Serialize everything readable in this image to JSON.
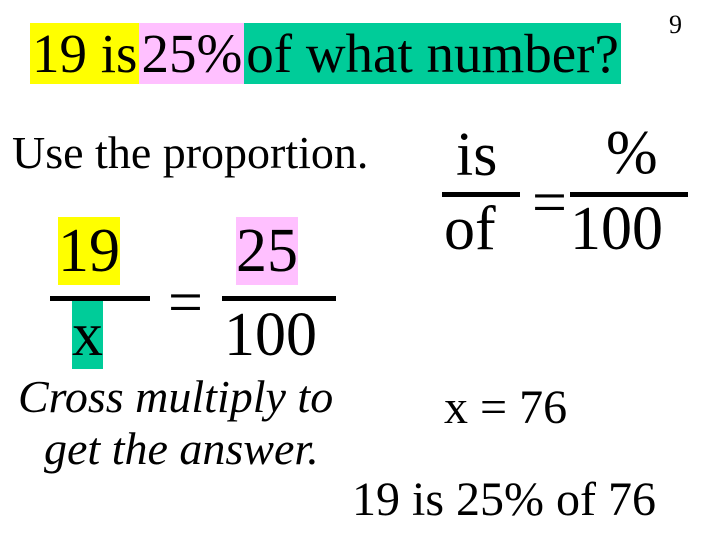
{
  "page_number": "9",
  "question": {
    "part1": "19 is",
    "part2": "25%",
    "part3": "of what number?"
  },
  "colors": {
    "yellow": "#ffff00",
    "pink": "#ffc0ff",
    "green": "#00cc99",
    "bgcolor": "#ffffff",
    "text": "#000000"
  },
  "use_proportion": "Use the proportion.",
  "schematic": {
    "is": "is",
    "of": "of",
    "equals": "=",
    "percent": "%",
    "hundred": "100"
  },
  "numeric": {
    "n19": "19",
    "x": "x",
    "equals": "=",
    "n25": "25",
    "n100": "100"
  },
  "cross_multiply_line1": "Cross multiply to",
  "cross_multiply_line2": "get the answer.",
  "solution": "x = 76",
  "final_statement": "19 is 25% of 76",
  "typography": {
    "font_family": "Times New Roman",
    "question_fontsize_pt": 41,
    "body_fontsize_pt": 35,
    "fraction_fontsize_pt": 47,
    "page_number_fontsize_pt": 20
  }
}
